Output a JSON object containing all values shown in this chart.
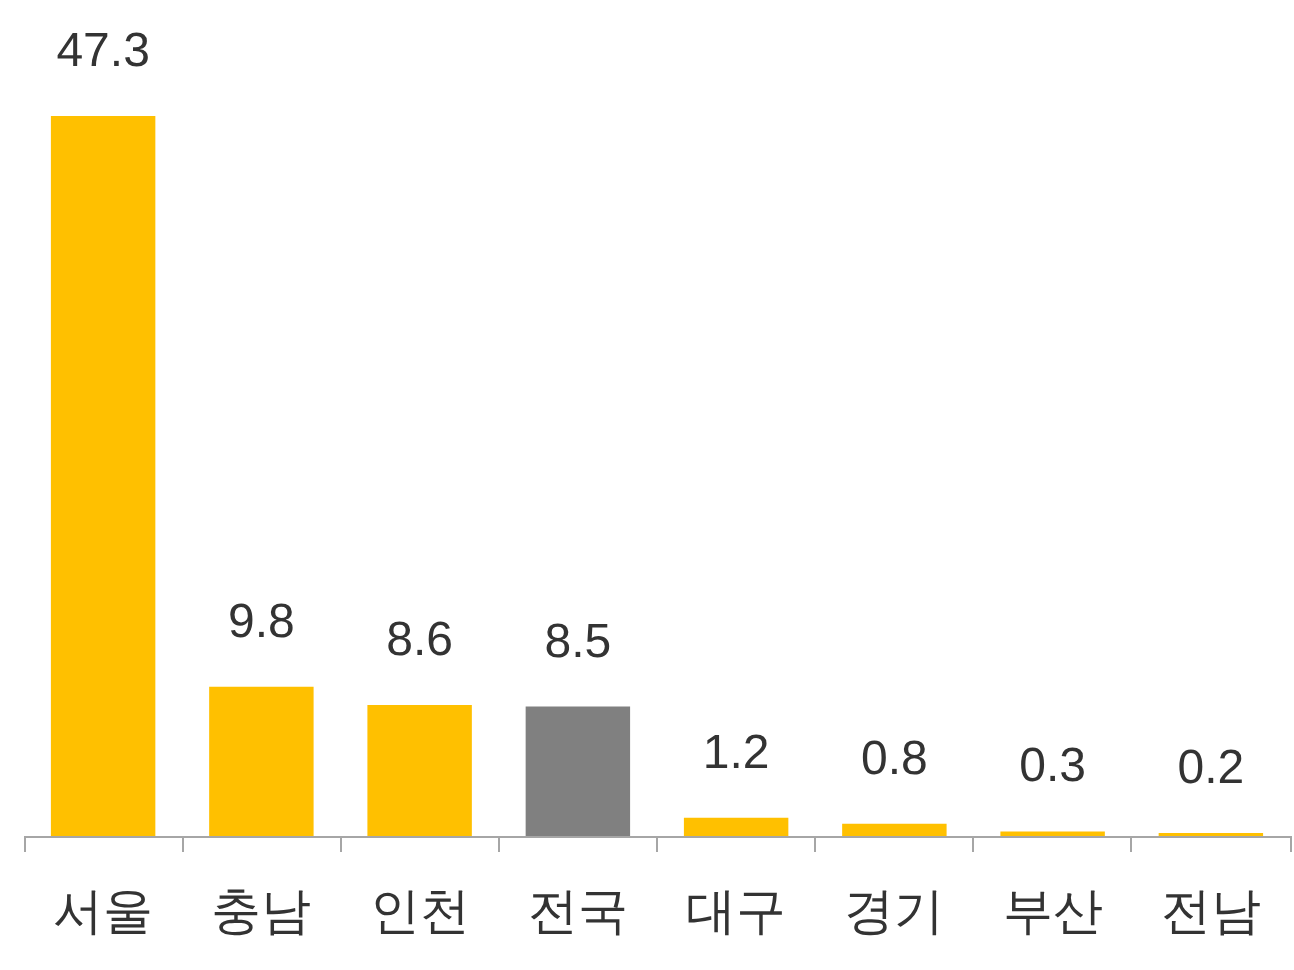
{
  "chart_data": {
    "type": "bar",
    "categories": [
      "서울",
      "충남",
      "인천",
      "전국",
      "대구",
      "경기",
      "부산",
      "전남"
    ],
    "values": [
      47.3,
      9.8,
      8.6,
      8.5,
      1.2,
      0.8,
      0.3,
      0.2
    ],
    "colors": [
      "#ffc000",
      "#ffc000",
      "#ffc000",
      "#808080",
      "#ffc000",
      "#ffc000",
      "#ffc000",
      "#ffc000"
    ],
    "data_labels": true
  }
}
